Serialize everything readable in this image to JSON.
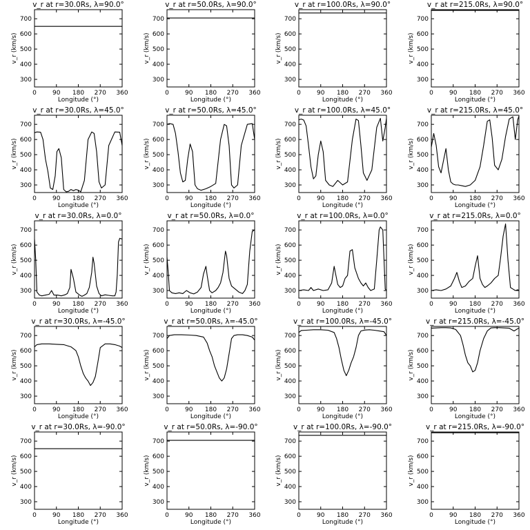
{
  "chart_data": [
    {
      "type": "line",
      "title": "v_r at r=30.0Rs, λ=90.0°",
      "xlabel": "Longitude (°)",
      "ylabel": "v_r (km/s)",
      "xlim": [
        0,
        360
      ],
      "ylim": [
        250,
        760
      ],
      "xticks": [
        0,
        90,
        180,
        270,
        360
      ],
      "yticks": [
        300,
        400,
        500,
        600,
        700
      ],
      "x": [
        0,
        360
      ],
      "y": [
        650,
        650
      ]
    },
    {
      "type": "line",
      "title": "v_r at r=50.0Rs, λ=90.0°",
      "xlabel": "Longitude (°)",
      "ylabel": "v_r (km/s)",
      "xlim": [
        0,
        360
      ],
      "ylim": [
        250,
        760
      ],
      "xticks": [
        0,
        90,
        180,
        270,
        360
      ],
      "yticks": [
        300,
        400,
        500,
        600,
        700
      ],
      "x": [
        0,
        360
      ],
      "y": [
        705,
        705
      ]
    },
    {
      "type": "line",
      "title": "v_r at r=100.0Rs, λ=90.0°",
      "xlabel": "Longitude (°)",
      "ylabel": "v_r (km/s)",
      "xlim": [
        0,
        360
      ],
      "ylim": [
        250,
        760
      ],
      "xticks": [
        0,
        90,
        180,
        270,
        360
      ],
      "yticks": [
        300,
        400,
        500,
        600,
        700
      ],
      "x": [
        0,
        360
      ],
      "y": [
        738,
        738
      ]
    },
    {
      "type": "line",
      "title": "v_r at r=215.0Rs, λ=90.0°",
      "xlabel": "Longitude (°)",
      "ylabel": "v_r (km/s)",
      "xlim": [
        0,
        360
      ],
      "ylim": [
        250,
        760
      ],
      "xticks": [
        0,
        90,
        180,
        270,
        360
      ],
      "yticks": [
        300,
        400,
        500,
        600,
        700
      ],
      "x": [
        0,
        360
      ],
      "y": [
        755,
        755
      ]
    },
    {
      "type": "line",
      "title": "v_r at r=30.0Rs, λ=45.0°",
      "xlabel": "Longitude (°)",
      "ylabel": "v_r (km/s)",
      "xlim": [
        0,
        360
      ],
      "ylim": [
        250,
        760
      ],
      "xticks": [
        0,
        90,
        180,
        270,
        360
      ],
      "yticks": [
        300,
        400,
        500,
        600,
        700
      ],
      "x": [
        0,
        10,
        25,
        35,
        45,
        55,
        65,
        75,
        85,
        92,
        100,
        110,
        120,
        130,
        140,
        150,
        160,
        170,
        180,
        190,
        205,
        220,
        235,
        245,
        255,
        265,
        275,
        290,
        305,
        330,
        350,
        360
      ],
      "y": [
        645,
        650,
        648,
        600,
        470,
        390,
        280,
        270,
        360,
        520,
        540,
        480,
        270,
        255,
        258,
        270,
        262,
        270,
        265,
        255,
        330,
        600,
        650,
        640,
        520,
        320,
        280,
        300,
        560,
        650,
        648,
        560
      ]
    },
    {
      "type": "line",
      "title": "v_r at r=50.0Rs, λ=45.0°",
      "xlabel": "Longitude (°)",
      "ylabel": "v_r (km/s)",
      "xlim": [
        0,
        360
      ],
      "ylim": [
        250,
        760
      ],
      "xticks": [
        0,
        90,
        180,
        270,
        360
      ],
      "yticks": [
        300,
        400,
        500,
        600,
        700
      ],
      "x": [
        0,
        10,
        25,
        35,
        45,
        55,
        65,
        75,
        85,
        95,
        105,
        115,
        125,
        140,
        160,
        180,
        200,
        220,
        235,
        245,
        255,
        265,
        275,
        290,
        305,
        330,
        350,
        360
      ],
      "y": [
        700,
        705,
        700,
        640,
        520,
        380,
        320,
        330,
        470,
        570,
        520,
        300,
        275,
        265,
        275,
        290,
        310,
        600,
        700,
        690,
        560,
        300,
        280,
        300,
        560,
        700,
        705,
        600
      ]
    },
    {
      "type": "line",
      "title": "v_r at r=100.0Rs, λ=45.0°",
      "xlabel": "Longitude (°)",
      "ylabel": "v_r (km/s)",
      "xlim": [
        0,
        360
      ],
      "ylim": [
        250,
        760
      ],
      "xticks": [
        0,
        90,
        180,
        270,
        360
      ],
      "yticks": [
        300,
        400,
        500,
        600,
        700
      ],
      "x": [
        0,
        10,
        20,
        30,
        40,
        50,
        60,
        70,
        80,
        90,
        100,
        110,
        125,
        140,
        160,
        180,
        200,
        220,
        235,
        245,
        255,
        265,
        280,
        300,
        320,
        335,
        345,
        355,
        360
      ],
      "y": [
        730,
        735,
        728,
        690,
        560,
        420,
        340,
        360,
        500,
        590,
        520,
        330,
        300,
        290,
        330,
        300,
        320,
        600,
        735,
        725,
        560,
        380,
        330,
        400,
        680,
        740,
        590,
        680,
        740
      ]
    },
    {
      "type": "line",
      "title": "v_r at r=215.0Rs, λ=45.0°",
      "xlabel": "Longitude (°)",
      "ylabel": "v_r (km/s)",
      "xlim": [
        0,
        360
      ],
      "ylim": [
        250,
        760
      ],
      "xticks": [
        0,
        90,
        180,
        270,
        360
      ],
      "yticks": [
        300,
        400,
        500,
        600,
        700
      ],
      "x": [
        0,
        10,
        20,
        30,
        40,
        50,
        60,
        70,
        80,
        90,
        100,
        110,
        125,
        140,
        160,
        180,
        200,
        215,
        230,
        240,
        250,
        260,
        275,
        290,
        305,
        320,
        335,
        345,
        355,
        360
      ],
      "y": [
        550,
        640,
        560,
        420,
        380,
        460,
        540,
        400,
        320,
        305,
        300,
        300,
        295,
        290,
        300,
        330,
        420,
        560,
        720,
        730,
        610,
        430,
        400,
        470,
        620,
        735,
        750,
        600,
        730,
        755
      ]
    },
    {
      "type": "line",
      "title": "v_r at r=30.0Rs, λ=0.0°",
      "xlabel": "Longitude (°)",
      "ylabel": "v_r (km/s)",
      "xlim": [
        0,
        360
      ],
      "ylim": [
        250,
        760
      ],
      "xticks": [
        0,
        90,
        180,
        270,
        360
      ],
      "yticks": [
        300,
        400,
        500,
        600,
        700
      ],
      "x": [
        0,
        5,
        10,
        20,
        30,
        45,
        60,
        70,
        80,
        95,
        110,
        125,
        135,
        145,
        150,
        160,
        170,
        185,
        195,
        205,
        215,
        225,
        235,
        240,
        245,
        255,
        265,
        275,
        290,
        305,
        320,
        330,
        335,
        340,
        345,
        350,
        360
      ],
      "y": [
        640,
        500,
        290,
        270,
        265,
        270,
        275,
        300,
        270,
        270,
        265,
        272,
        280,
        320,
        440,
        380,
        290,
        270,
        262,
        270,
        280,
        320,
        420,
        520,
        480,
        330,
        280,
        265,
        272,
        268,
        265,
        265,
        290,
        400,
        620,
        645,
        640
      ]
    },
    {
      "type": "line",
      "title": "v_r at r=50.0Rs, λ=0.0°",
      "xlabel": "Longitude (°)",
      "ylabel": "v_r (km/s)",
      "xlim": [
        0,
        360
      ],
      "ylim": [
        250,
        760
      ],
      "xticks": [
        0,
        90,
        180,
        270,
        360
      ],
      "yticks": [
        300,
        400,
        500,
        600,
        700
      ],
      "x": [
        0,
        5,
        10,
        20,
        35,
        50,
        65,
        80,
        95,
        110,
        125,
        140,
        150,
        160,
        165,
        175,
        185,
        200,
        210,
        220,
        230,
        240,
        245,
        255,
        265,
        280,
        295,
        310,
        320,
        330,
        340,
        350,
        360
      ],
      "y": [
        520,
        420,
        300,
        285,
        280,
        285,
        280,
        300,
        285,
        278,
        290,
        320,
        410,
        460,
        400,
        300,
        285,
        300,
        320,
        350,
        420,
        560,
        530,
        380,
        330,
        310,
        290,
        280,
        300,
        340,
        560,
        690,
        700
      ]
    },
    {
      "type": "line",
      "title": "v_r at r=100.0Rs, λ=0.0°",
      "xlabel": "Longitude (°)",
      "ylabel": "v_r (km/s)",
      "xlim": [
        0,
        360
      ],
      "ylim": [
        250,
        760
      ],
      "xticks": [
        0,
        90,
        180,
        270,
        360
      ],
      "yticks": [
        300,
        400,
        500,
        600,
        700
      ],
      "x": [
        0,
        20,
        40,
        50,
        60,
        80,
        100,
        120,
        135,
        145,
        150,
        160,
        170,
        180,
        190,
        200,
        210,
        220,
        230,
        245,
        255,
        265,
        275,
        285,
        295,
        310,
        320,
        330,
        335,
        345,
        355,
        360
      ],
      "y": [
        300,
        305,
        300,
        320,
        300,
        310,
        300,
        305,
        350,
        460,
        420,
        340,
        320,
        330,
        380,
        400,
        560,
        570,
        450,
        380,
        350,
        330,
        350,
        320,
        300,
        310,
        500,
        700,
        720,
        700,
        310,
        300
      ]
    },
    {
      "type": "line",
      "title": "v_r at r=215.0Rs, λ=0.0°",
      "xlabel": "Longitude (°)",
      "ylabel": "v_r (km/s)",
      "xlim": [
        0,
        360
      ],
      "ylim": [
        250,
        760
      ],
      "xticks": [
        0,
        90,
        180,
        270,
        360
      ],
      "yticks": [
        300,
        400,
        500,
        600,
        700
      ],
      "x": [
        0,
        20,
        40,
        60,
        80,
        95,
        105,
        115,
        125,
        140,
        155,
        170,
        180,
        190,
        200,
        210,
        220,
        230,
        245,
        260,
        275,
        285,
        295,
        305,
        315,
        325,
        335,
        345,
        355,
        360
      ],
      "y": [
        300,
        305,
        300,
        310,
        330,
        380,
        420,
        360,
        320,
        330,
        360,
        380,
        460,
        530,
        380,
        340,
        320,
        330,
        350,
        380,
        400,
        520,
        660,
        740,
        500,
        320,
        310,
        300,
        305,
        300
      ]
    },
    {
      "type": "line",
      "title": "v_r at r=30.0Rs, λ=-45.0°",
      "xlabel": "Longitude (°)",
      "ylabel": "v_r (km/s)",
      "xlim": [
        0,
        360
      ],
      "ylim": [
        250,
        760
      ],
      "xticks": [
        0,
        90,
        180,
        270,
        360
      ],
      "yticks": [
        300,
        400,
        500,
        600,
        700
      ],
      "x": [
        0,
        10,
        30,
        60,
        90,
        120,
        150,
        170,
        180,
        190,
        200,
        210,
        220,
        230,
        240,
        250,
        260,
        270,
        290,
        310,
        330,
        350,
        360
      ],
      "y": [
        625,
        640,
        645,
        645,
        642,
        640,
        625,
        600,
        560,
        500,
        450,
        420,
        400,
        370,
        390,
        430,
        520,
        620,
        645,
        645,
        640,
        630,
        620
      ]
    },
    {
      "type": "line",
      "title": "v_r at r=50.0Rs, λ=-45.0°",
      "xlabel": "Longitude (°)",
      "ylabel": "v_r (km/s)",
      "xlim": [
        0,
        360
      ],
      "ylim": [
        250,
        760
      ],
      "xticks": [
        0,
        90,
        180,
        270,
        360
      ],
      "yticks": [
        300,
        400,
        500,
        600,
        700
      ],
      "x": [
        0,
        10,
        30,
        60,
        90,
        120,
        150,
        165,
        175,
        185,
        195,
        205,
        215,
        225,
        235,
        245,
        255,
        265,
        275,
        290,
        310,
        330,
        350,
        360
      ],
      "y": [
        680,
        700,
        705,
        705,
        703,
        700,
        690,
        650,
        600,
        560,
        500,
        460,
        420,
        400,
        420,
        480,
        580,
        680,
        700,
        705,
        705,
        700,
        690,
        670
      ]
    },
    {
      "type": "line",
      "title": "v_r at r=100.0Rs, λ=-45.0°",
      "xlabel": "Longitude (°)",
      "ylabel": "v_r (km/s)",
      "xlim": [
        0,
        360
      ],
      "ylim": [
        250,
        760
      ],
      "xticks": [
        0,
        90,
        180,
        270,
        360
      ],
      "yticks": [
        300,
        400,
        500,
        600,
        700
      ],
      "x": [
        0,
        10,
        30,
        60,
        90,
        120,
        145,
        155,
        165,
        175,
        185,
        195,
        205,
        215,
        225,
        235,
        245,
        255,
        270,
        290,
        310,
        330,
        350,
        360
      ],
      "y": [
        720,
        733,
        735,
        738,
        738,
        735,
        720,
        680,
        620,
        540,
        470,
        435,
        470,
        520,
        560,
        620,
        700,
        730,
        736,
        738,
        735,
        730,
        725,
        700
      ]
    },
    {
      "type": "line",
      "title": "v_r at r=215.0Rs, λ=-45.0°",
      "xlabel": "Longitude (°)",
      "ylabel": "v_r (km/s)",
      "xlim": [
        0,
        360
      ],
      "ylim": [
        250,
        760
      ],
      "xticks": [
        0,
        90,
        180,
        270,
        360
      ],
      "yticks": [
        300,
        400,
        500,
        600,
        700
      ],
      "x": [
        0,
        20,
        40,
        60,
        80,
        100,
        120,
        130,
        140,
        150,
        160,
        170,
        180,
        190,
        200,
        215,
        230,
        245,
        260,
        280,
        300,
        320,
        340,
        350,
        360
      ],
      "y": [
        748,
        750,
        752,
        752,
        750,
        740,
        700,
        640,
        570,
        520,
        500,
        460,
        470,
        520,
        600,
        680,
        730,
        750,
        752,
        752,
        750,
        748,
        730,
        740,
        750
      ]
    },
    {
      "type": "line",
      "title": "v_r at r=30.0Rs, λ=-90.0°",
      "xlabel": "Longitude (°)",
      "ylabel": "v_r (km/s)",
      "xlim": [
        0,
        360
      ],
      "ylim": [
        250,
        760
      ],
      "xticks": [
        0,
        90,
        180,
        270,
        360
      ],
      "yticks": [
        300,
        400,
        500,
        600,
        700
      ],
      "x": [
        0,
        360
      ],
      "y": [
        650,
        650
      ]
    },
    {
      "type": "line",
      "title": "v_r at r=50.0Rs, λ=-90.0°",
      "xlabel": "Longitude (°)",
      "ylabel": "v_r (km/s)",
      "xlim": [
        0,
        360
      ],
      "ylim": [
        250,
        760
      ],
      "xticks": [
        0,
        90,
        180,
        270,
        360
      ],
      "yticks": [
        300,
        400,
        500,
        600,
        700
      ],
      "x": [
        0,
        360
      ],
      "y": [
        705,
        705
      ]
    },
    {
      "type": "line",
      "title": "v_r at r=100.0Rs, λ=-90.0°",
      "xlabel": "Longitude (°)",
      "ylabel": "v_r (km/s)",
      "xlim": [
        0,
        360
      ],
      "ylim": [
        250,
        760
      ],
      "xticks": [
        0,
        90,
        180,
        270,
        360
      ],
      "yticks": [
        300,
        400,
        500,
        600,
        700
      ],
      "x": [
        0,
        360
      ],
      "y": [
        738,
        738
      ]
    },
    {
      "type": "line",
      "title": "v_r at r=215.0Rs, λ=-90.0°",
      "xlabel": "Longitude (°)",
      "ylabel": "v_r (km/s)",
      "xlim": [
        0,
        360
      ],
      "ylim": [
        250,
        760
      ],
      "xticks": [
        0,
        90,
        180,
        270,
        360
      ],
      "yticks": [
        300,
        400,
        500,
        600,
        700
      ],
      "x": [
        0,
        360
      ],
      "y": [
        755,
        755
      ]
    }
  ]
}
